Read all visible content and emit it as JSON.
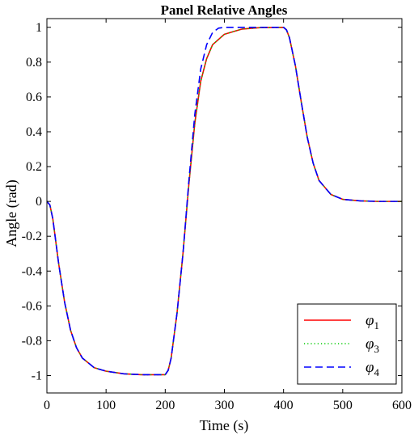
{
  "chart_data": {
    "type": "line",
    "title": "Panel Relative Angles",
    "xlabel": "Time (s)",
    "ylabel": "Angle (rad)",
    "xlim": [
      0,
      600
    ],
    "ylim": [
      -1.1,
      1.05
    ],
    "xticks": [
      0,
      100,
      200,
      300,
      400,
      500,
      600
    ],
    "xtick_labels": [
      "0",
      "100",
      "200",
      "300",
      "400",
      "500",
      "600"
    ],
    "yticks": [
      1,
      0.8,
      0.6,
      0.4,
      0.2,
      0,
      -0.2,
      -0.4,
      -0.6,
      -0.8,
      -1
    ],
    "ytick_labels": [
      "1",
      "0.8",
      "0.6",
      "0.4",
      "0.2",
      "0",
      "-0.2",
      "-0.4",
      "-0.6",
      "-0.8",
      "-1"
    ],
    "grid": false,
    "legend_position": "bottom-right",
    "series": [
      {
        "name": "φ1",
        "symbol": "φ",
        "subscript": "1",
        "color": "#ff0000",
        "style": "solid",
        "x": [
          0,
          5,
          10,
          20,
          30,
          40,
          50,
          60,
          80,
          100,
          130,
          160,
          200,
          205,
          210,
          220,
          230,
          240,
          250,
          260,
          270,
          280,
          300,
          330,
          360,
          400,
          405,
          410,
          420,
          430,
          440,
          450,
          460,
          480,
          500,
          530,
          560,
          600
        ],
        "y": [
          0,
          -0.02,
          -0.1,
          -0.36,
          -0.58,
          -0.74,
          -0.84,
          -0.9,
          -0.955,
          -0.975,
          -0.99,
          -0.995,
          -0.995,
          -0.97,
          -0.9,
          -0.64,
          -0.3,
          0.1,
          0.45,
          0.69,
          0.82,
          0.9,
          0.96,
          0.99,
          0.998,
          1.0,
          0.985,
          0.94,
          0.78,
          0.57,
          0.37,
          0.22,
          0.12,
          0.04,
          0.012,
          0.003,
          0.0,
          0.0
        ]
      },
      {
        "name": "φ3",
        "symbol": "φ",
        "subscript": "3",
        "color": "#00cc00",
        "style": "dotted",
        "x": [
          0,
          5,
          10,
          20,
          30,
          40,
          50,
          60,
          80,
          100,
          130,
          160,
          200,
          205,
          210,
          220,
          230,
          240,
          250,
          260,
          270,
          280,
          300,
          330,
          360,
          400,
          405,
          410,
          420,
          430,
          440,
          450,
          460,
          480,
          500,
          530,
          560,
          600
        ],
        "y": [
          0,
          -0.02,
          -0.1,
          -0.36,
          -0.58,
          -0.74,
          -0.84,
          -0.9,
          -0.955,
          -0.975,
          -0.99,
          -0.995,
          -0.995,
          -0.97,
          -0.9,
          -0.64,
          -0.3,
          0.1,
          0.45,
          0.69,
          0.82,
          0.9,
          0.96,
          0.99,
          0.998,
          1.0,
          0.985,
          0.94,
          0.78,
          0.57,
          0.37,
          0.22,
          0.12,
          0.04,
          0.012,
          0.003,
          0.0,
          0.0
        ]
      },
      {
        "name": "φ4",
        "symbol": "φ",
        "subscript": "4",
        "color": "#0000ff",
        "style": "dashed",
        "x": [
          0,
          5,
          10,
          20,
          30,
          40,
          50,
          60,
          80,
          100,
          130,
          160,
          200,
          205,
          210,
          220,
          230,
          240,
          250,
          260,
          270,
          280,
          290,
          300,
          330,
          360,
          400,
          405,
          410,
          420,
          430,
          440,
          450,
          460,
          480,
          500,
          530,
          560,
          600
        ],
        "y": [
          0,
          -0.02,
          -0.1,
          -0.36,
          -0.58,
          -0.74,
          -0.84,
          -0.9,
          -0.955,
          -0.975,
          -0.99,
          -0.995,
          -0.995,
          -0.97,
          -0.9,
          -0.64,
          -0.3,
          0.12,
          0.5,
          0.76,
          0.9,
          0.97,
          0.995,
          1.0,
          1.0,
          1.0,
          1.0,
          0.985,
          0.94,
          0.78,
          0.57,
          0.37,
          0.22,
          0.12,
          0.04,
          0.012,
          0.003,
          0.0,
          0.0
        ]
      }
    ]
  }
}
